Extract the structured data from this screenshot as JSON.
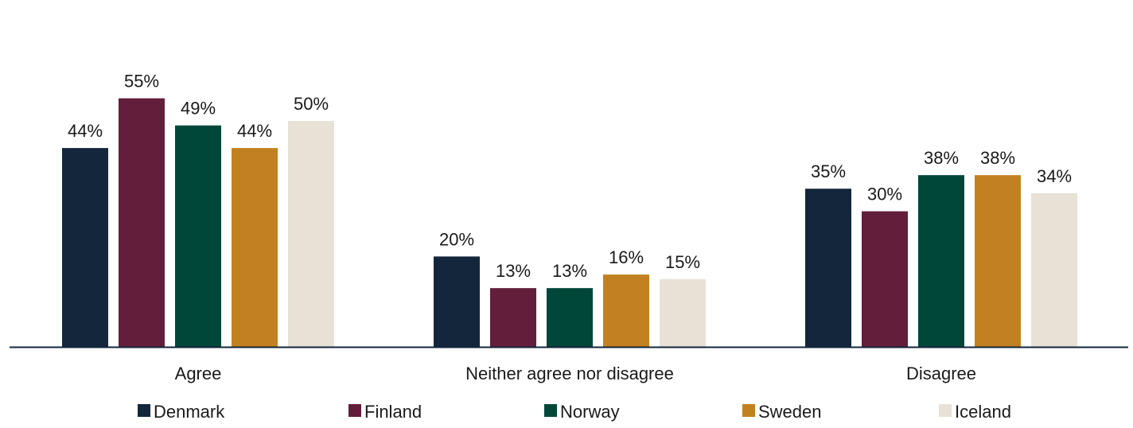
{
  "chart_data": {
    "type": "bar",
    "title": "",
    "xlabel": "",
    "ylabel": "",
    "ylim": [
      0,
      57
    ],
    "grid": false,
    "legend_position": "bottom",
    "value_suffix": "%",
    "categories": [
      "Agree",
      "Neither agree nor disagree",
      "Disagree"
    ],
    "series": [
      {
        "name": "Denmark",
        "color": "#13263b",
        "values": [
          44,
          20,
          35
        ]
      },
      {
        "name": "Finland",
        "color": "#621e3a",
        "values": [
          55,
          13,
          30
        ]
      },
      {
        "name": "Norway",
        "color": "#00473a",
        "values": [
          49,
          13,
          38
        ]
      },
      {
        "name": "Sweden",
        "color": "#c28121",
        "values": [
          44,
          16,
          38
        ]
      },
      {
        "name": "Iceland",
        "color": "#e8e1d6",
        "values": [
          50,
          15,
          34
        ]
      }
    ]
  }
}
